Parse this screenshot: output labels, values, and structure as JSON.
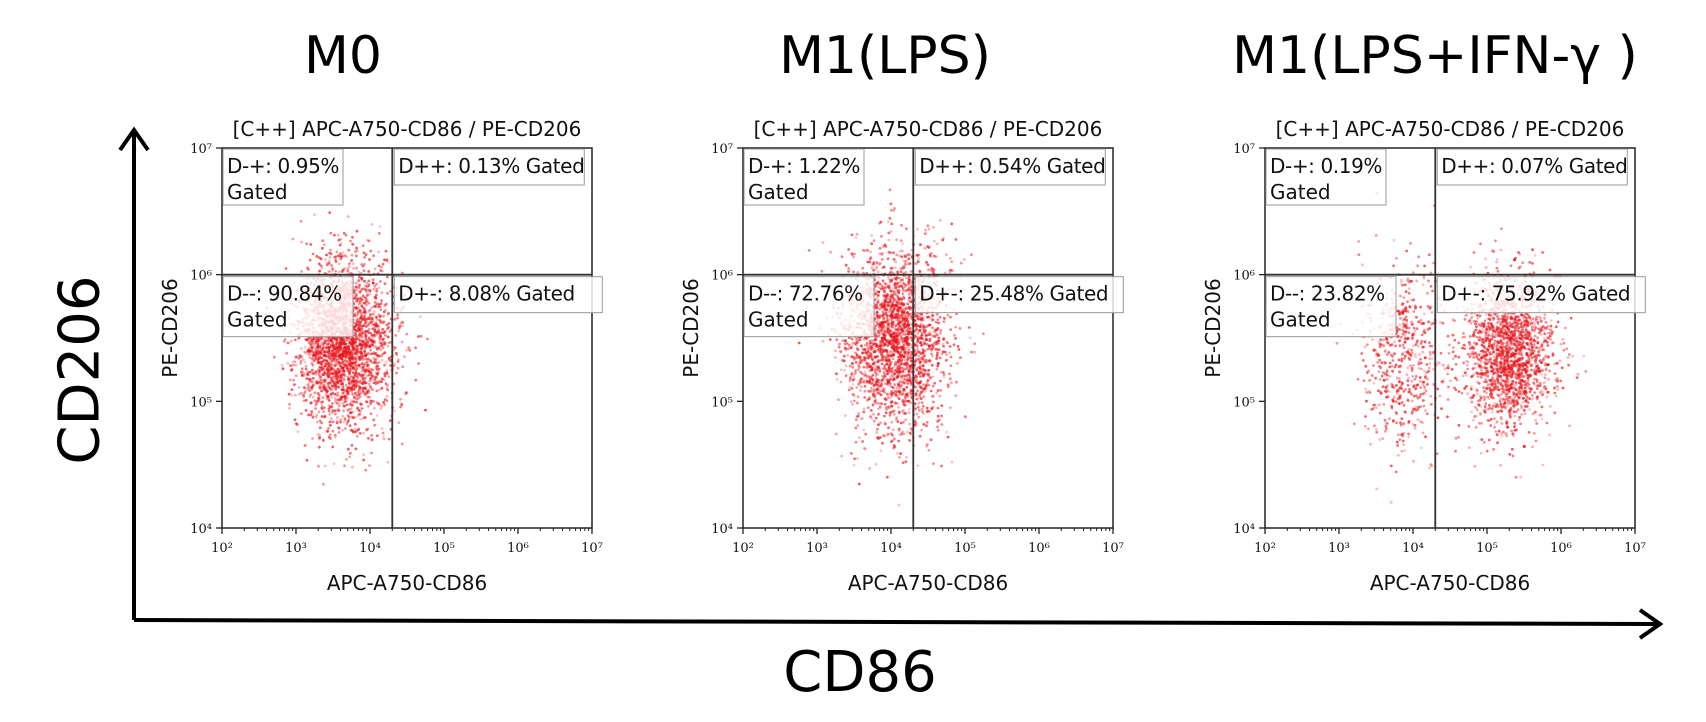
{
  "figure": {
    "y_axis_label": "CD206",
    "x_axis_label": "CD86"
  },
  "chart_data": [
    {
      "type": "scatter",
      "title": "M0",
      "subtitle": "[C++] APC-A750-CD86 / PE-CD206",
      "xlabel": "APC-A750-CD86",
      "ylabel": "PE-CD206",
      "xscale": "log",
      "yscale": "log",
      "xlim": [
        100,
        10000000
      ],
      "ylim": [
        10000,
        10000000
      ],
      "xticks": [
        "10²",
        "10³",
        "10⁴",
        "10⁵",
        "10⁶",
        "10⁷"
      ],
      "yticks": [
        "10⁴",
        "10⁵",
        "10⁶",
        "10⁷"
      ],
      "gate": {
        "x": 20000,
        "y": 1000000
      },
      "quadrants": [
        {
          "name": "D-+",
          "label": "D-+: 0.95%",
          "suffix": "Gated",
          "percent": 0.95,
          "position": "top-left"
        },
        {
          "name": "D++",
          "label": "D++: 0.13% Gated",
          "percent": 0.13,
          "position": "top-right"
        },
        {
          "name": "D--",
          "label": "D--: 90.84%",
          "suffix": "Gated",
          "percent": 90.84,
          "position": "bottom-left"
        },
        {
          "name": "D+-",
          "label": "D+-: 8.08% Gated",
          "percent": 8.08,
          "position": "bottom-right"
        }
      ],
      "populations": [
        {
          "center": [
            3.65,
            5.45
          ],
          "sd": [
            0.32,
            0.33
          ],
          "n": 2600
        }
      ]
    },
    {
      "type": "scatter",
      "title": "M1(LPS)",
      "subtitle": "[C++] APC-A750-CD86 / PE-CD206",
      "xlabel": "APC-A750-CD86",
      "ylabel": "PE-CD206",
      "xscale": "log",
      "yscale": "log",
      "xlim": [
        100,
        10000000
      ],
      "ylim": [
        10000,
        10000000
      ],
      "xticks": [
        "10²",
        "10³",
        "10⁴",
        "10⁵",
        "10⁶",
        "10⁷"
      ],
      "yticks": [
        "10⁴",
        "10⁵",
        "10⁶",
        "10⁷"
      ],
      "gate": {
        "x": 20000,
        "y": 1000000
      },
      "quadrants": [
        {
          "name": "D-+",
          "label": "D-+: 1.22%",
          "suffix": "Gated",
          "percent": 1.22,
          "position": "top-left"
        },
        {
          "name": "D++",
          "label": "D++: 0.54% Gated",
          "percent": 0.54,
          "position": "top-right"
        },
        {
          "name": "D--",
          "label": "D--: 72.76%",
          "suffix": "Gated",
          "percent": 72.76,
          "position": "bottom-left"
        },
        {
          "name": "D+-",
          "label": "D+-: 25.48% Gated",
          "percent": 25.48,
          "position": "bottom-right"
        }
      ],
      "populations": [
        {
          "center": [
            4.05,
            5.5
          ],
          "sd": [
            0.35,
            0.35
          ],
          "n": 2400
        }
      ]
    },
    {
      "type": "scatter",
      "title": "M1(LPS+IFN-γ )",
      "subtitle": "[C++] APC-A750-CD86 / PE-CD206",
      "xlabel": "APC-A750-CD86",
      "ylabel": "PE-CD206",
      "xscale": "log",
      "yscale": "log",
      "xlim": [
        100,
        10000000
      ],
      "ylim": [
        10000,
        10000000
      ],
      "xticks": [
        "10²",
        "10³",
        "10⁴",
        "10⁵",
        "10⁶",
        "10⁷"
      ],
      "yticks": [
        "10⁴",
        "10⁵",
        "10⁶",
        "10⁷"
      ],
      "gate": {
        "x": 20000,
        "y": 1000000
      },
      "quadrants": [
        {
          "name": "D-+",
          "label": "D-+: 0.19%",
          "suffix": "Gated",
          "percent": 0.19,
          "position": "top-left"
        },
        {
          "name": "D++",
          "label": "D++: 0.07% Gated",
          "percent": 0.07,
          "position": "top-right"
        },
        {
          "name": "D--",
          "label": "D--: 23.82%",
          "suffix": "Gated",
          "percent": 23.82,
          "position": "bottom-left"
        },
        {
          "name": "D+-",
          "label": "D+-: 75.92% Gated",
          "percent": 75.92,
          "position": "bottom-right"
        }
      ],
      "populations": [
        {
          "center": [
            5.3,
            5.4
          ],
          "sd": [
            0.3,
            0.3
          ],
          "n": 1800
        },
        {
          "center": [
            3.9,
            5.35
          ],
          "sd": [
            0.3,
            0.38
          ],
          "n": 600
        }
      ]
    }
  ],
  "colors": {
    "dot": "#e8141b",
    "axis": "#000000",
    "text": "#111111"
  }
}
